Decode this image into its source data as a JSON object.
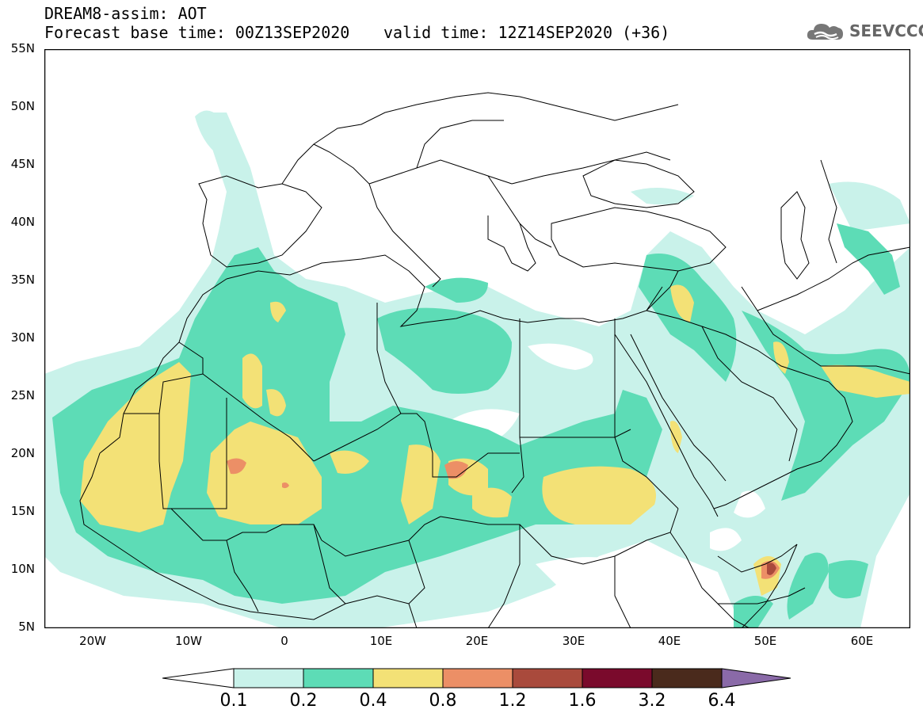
{
  "header": {
    "title": "DREAM8-assim: AOT",
    "base_time": "Forecast base time: 00Z13SEP2020",
    "valid_time": "valid time: 12Z14SEP2020 (+36)"
  },
  "logo": {
    "text": "SEEVCCC",
    "icon": "cloud-logo-icon"
  },
  "map": {
    "extent": {
      "lon": [
        -25,
        65
      ],
      "lat": [
        5,
        55
      ]
    },
    "lat_ticks": [
      {
        "value": 55,
        "label": "55N"
      },
      {
        "value": 50,
        "label": "50N"
      },
      {
        "value": 45,
        "label": "45N"
      },
      {
        "value": 40,
        "label": "40N"
      },
      {
        "value": 35,
        "label": "35N"
      },
      {
        "value": 30,
        "label": "30N"
      },
      {
        "value": 25,
        "label": "25N"
      },
      {
        "value": 20,
        "label": "20N"
      },
      {
        "value": 15,
        "label": "15N"
      },
      {
        "value": 10,
        "label": "10N"
      },
      {
        "value": 5,
        "label": "5N"
      }
    ],
    "lon_ticks": [
      {
        "value": -20,
        "label": "20W"
      },
      {
        "value": -10,
        "label": "10W"
      },
      {
        "value": 0,
        "label": "0"
      },
      {
        "value": 10,
        "label": "10E"
      },
      {
        "value": 20,
        "label": "20E"
      },
      {
        "value": 30,
        "label": "30E"
      },
      {
        "value": 40,
        "label": "40E"
      },
      {
        "value": 50,
        "label": "50E"
      },
      {
        "value": 60,
        "label": "60E"
      }
    ]
  },
  "colorbar": {
    "labels": [
      "0.1",
      "0.2",
      "0.4",
      "0.8",
      "1.2",
      "1.6",
      "3.2",
      "6.4"
    ],
    "colors": [
      "#ffffff",
      "#c9f2ea",
      "#5ddcb6",
      "#f3e176",
      "#ec8f66",
      "#a94a3c",
      "#7a0a2c",
      "#4a2a1c",
      "#8a6aa8"
    ]
  }
}
